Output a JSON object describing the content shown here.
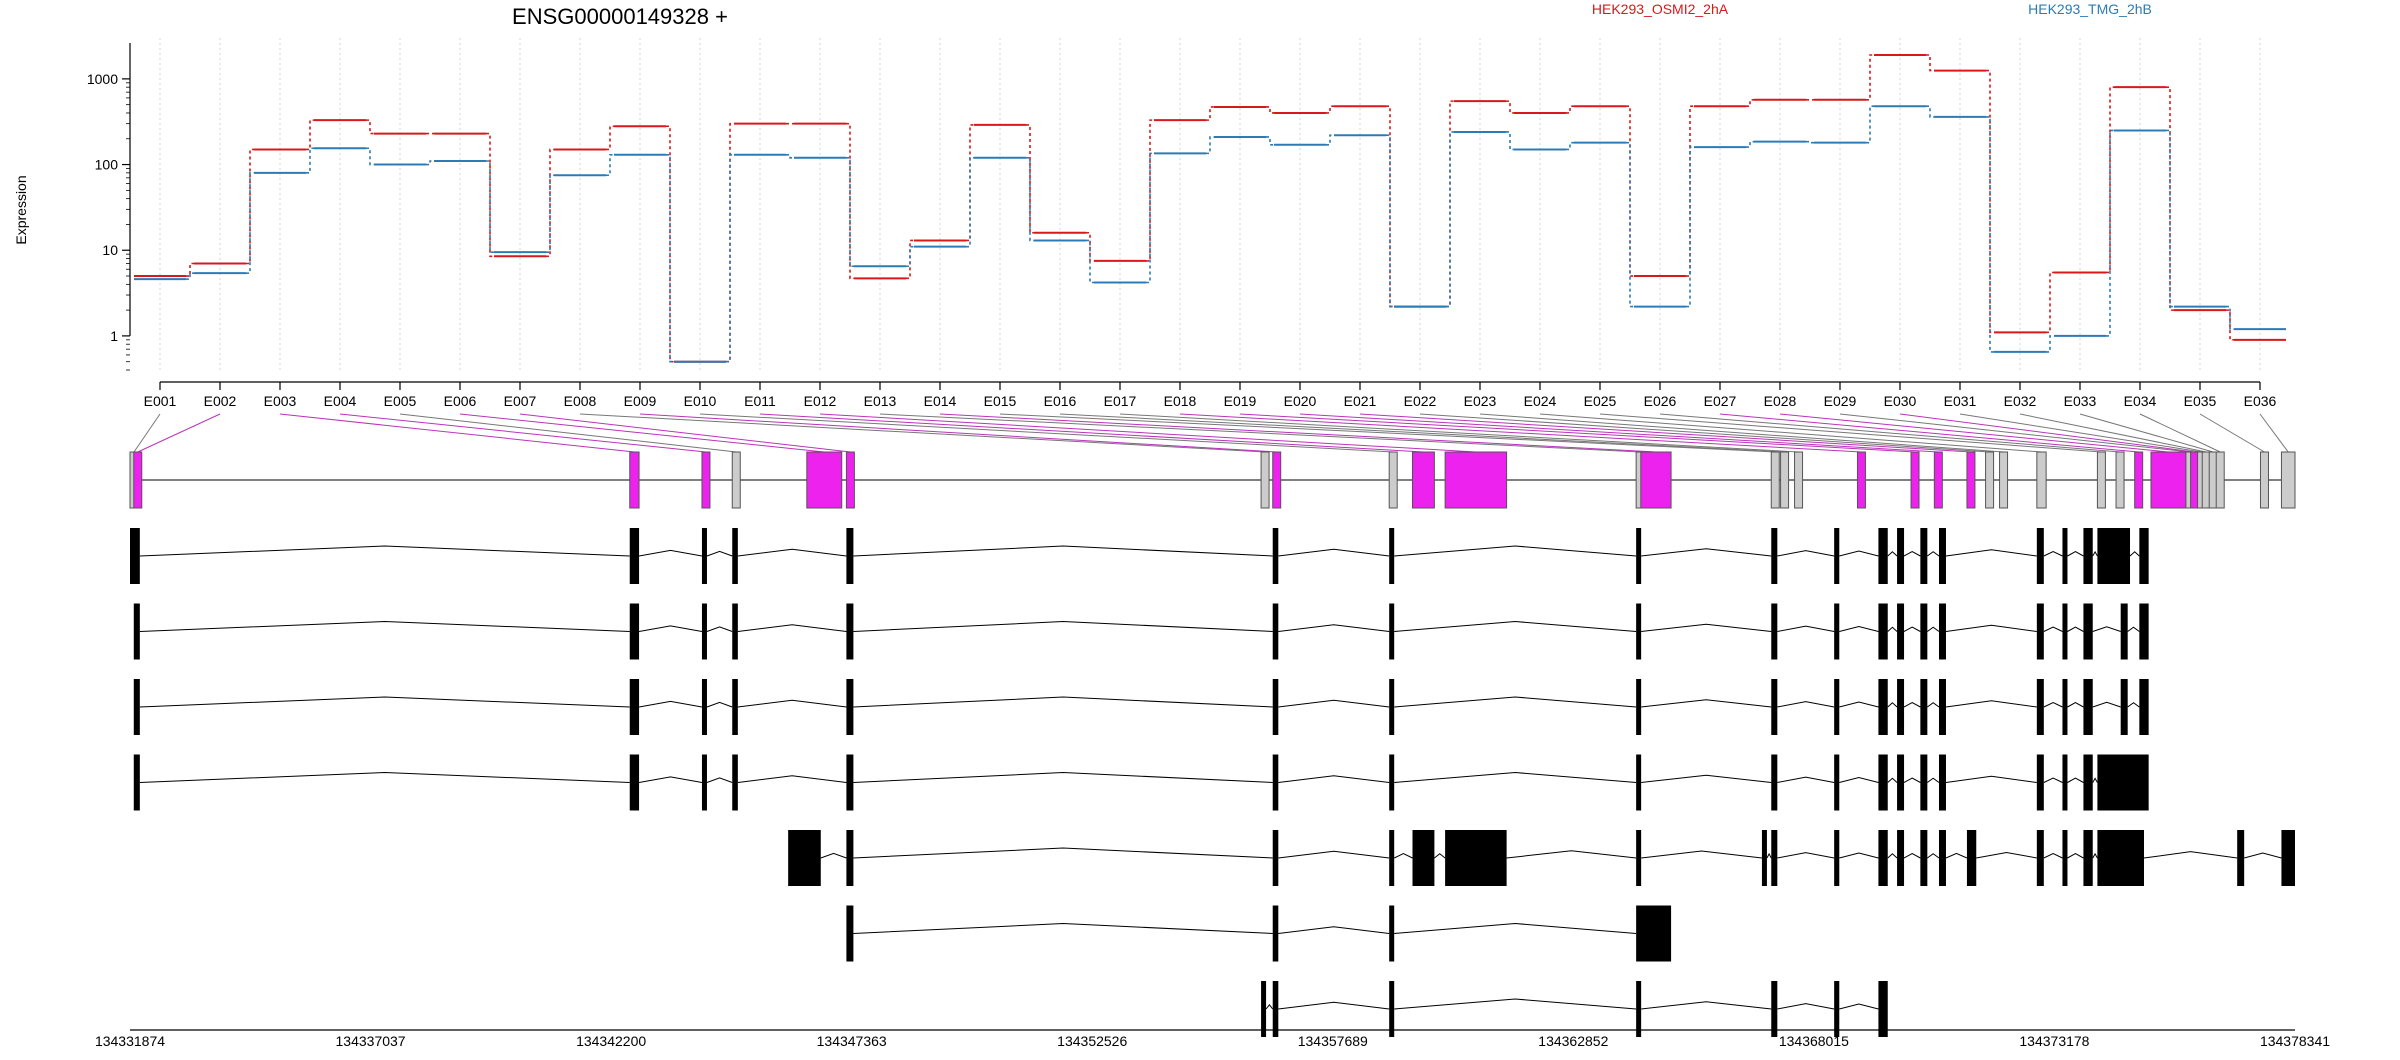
{
  "chart_data": {
    "type": "line",
    "title": "ENSG00000149328 +",
    "ylabel": "Expression",
    "xlabel": "",
    "y_scale": "log",
    "ylim": [
      0.4,
      3000
    ],
    "y_ticks": [
      1,
      10,
      100,
      1000
    ],
    "grid": "vertical dotted lines at exon bins",
    "legend_position": "top-right",
    "categories": [
      "E001",
      "E002",
      "E003",
      "E004",
      "E005",
      "E006",
      "E007",
      "E008",
      "E009",
      "E010",
      "E011",
      "E012",
      "E013",
      "E014",
      "E015",
      "E016",
      "E017",
      "E018",
      "E019",
      "E020",
      "E021",
      "E022",
      "E023",
      "E024",
      "E025",
      "E026",
      "E027",
      "E028",
      "E029",
      "E030",
      "E031",
      "E032",
      "E033",
      "E034",
      "E035",
      "E036"
    ],
    "series": [
      {
        "name": "HEK293_OSMI2_2hA",
        "color": "#d7191c",
        "values": [
          5,
          7,
          150,
          330,
          230,
          230,
          8.5,
          150,
          280,
          0.5,
          300,
          300,
          4.7,
          13,
          290,
          16,
          7.5,
          330,
          470,
          400,
          480,
          2.2,
          550,
          400,
          480,
          5,
          480,
          570,
          570,
          1900,
          1250,
          1.1,
          5.5,
          800,
          2,
          0.9
        ]
      },
      {
        "name": "HEK293_TMG_2hB",
        "color": "#2c7bb6",
        "values": [
          4.6,
          5.4,
          80,
          155,
          100,
          110,
          9.5,
          75,
          130,
          0.5,
          130,
          120,
          6.5,
          11,
          120,
          13,
          4.2,
          135,
          210,
          170,
          220,
          2.2,
          240,
          150,
          180,
          2.2,
          160,
          185,
          180,
          480,
          360,
          0.65,
          1,
          250,
          2.2,
          1.2
        ]
      }
    ],
    "genome_axis": {
      "ticks": [
        "134331874",
        "134337037",
        "134342200",
        "134347363",
        "134352526",
        "134357689",
        "134362852",
        "134368015",
        "134373178",
        "134378341"
      ],
      "start": 134331874,
      "end": 134378341
    },
    "exon_bins": [
      {
        "id": "E001",
        "start": 134331874,
        "end": 134331955,
        "diff": false
      },
      {
        "id": "E002",
        "start": 134331955,
        "end": 134332085,
        "diff": true
      },
      {
        "id": "E003",
        "start": 134342600,
        "end": 134342800,
        "diff": true
      },
      {
        "id": "E004",
        "start": 134344150,
        "end": 134344250,
        "diff": true
      },
      {
        "id": "E005",
        "start": 134344800,
        "end": 134344920,
        "diff": false
      },
      {
        "id": "E006",
        "start": 134346400,
        "end": 134347150,
        "diff": true
      },
      {
        "id": "E007",
        "start": 134347250,
        "end": 134347400,
        "diff": true
      },
      {
        "id": "E008",
        "start": 134356150,
        "end": 134356210,
        "diff": false
      },
      {
        "id": "E009",
        "start": 134356400,
        "end": 134356520,
        "diff": true
      },
      {
        "id": "E010",
        "start": 134358900,
        "end": 134359000,
        "diff": false
      },
      {
        "id": "E011",
        "start": 134359400,
        "end": 134359870,
        "diff": true
      },
      {
        "id": "E012",
        "start": 134360100,
        "end": 134361420,
        "diff": true
      },
      {
        "id": "E013",
        "start": 134364200,
        "end": 134364300,
        "diff": false
      },
      {
        "id": "E014",
        "start": 134364300,
        "end": 134364950,
        "diff": true
      },
      {
        "id": "E015",
        "start": 134367100,
        "end": 134367230,
        "diff": false
      },
      {
        "id": "E016",
        "start": 134367300,
        "end": 134367400,
        "diff": false
      },
      {
        "id": "E017",
        "start": 134367600,
        "end": 134367750,
        "diff": false
      },
      {
        "id": "E018",
        "start": 134368950,
        "end": 134369100,
        "diff": true
      },
      {
        "id": "E019",
        "start": 134370100,
        "end": 134370200,
        "diff": true
      },
      {
        "id": "E020",
        "start": 134370600,
        "end": 134370750,
        "diff": true
      },
      {
        "id": "E021",
        "start": 134371300,
        "end": 134371450,
        "diff": true
      },
      {
        "id": "E022",
        "start": 134371700,
        "end": 134371850,
        "diff": false
      },
      {
        "id": "E023",
        "start": 134372000,
        "end": 134372120,
        "diff": false
      },
      {
        "id": "E024",
        "start": 134372800,
        "end": 134373000,
        "diff": false
      },
      {
        "id": "E025",
        "start": 134374100,
        "end": 134374200,
        "diff": false
      },
      {
        "id": "E026",
        "start": 134374500,
        "end": 134374650,
        "diff": false
      },
      {
        "id": "E027",
        "start": 134374900,
        "end": 134375050,
        "diff": true
      },
      {
        "id": "E028",
        "start": 134375250,
        "end": 134376000,
        "diff": true
      },
      {
        "id": "E029",
        "start": 134376000,
        "end": 134376100,
        "diff": false
      },
      {
        "id": "E030",
        "start": 134376100,
        "end": 134376250,
        "diff": true
      },
      {
        "id": "E031",
        "start": 134376250,
        "end": 134376350,
        "diff": false
      },
      {
        "id": "E032",
        "start": 134376350,
        "end": 134376500,
        "diff": false
      },
      {
        "id": "E033",
        "start": 134376500,
        "end": 134376650,
        "diff": false
      },
      {
        "id": "E034",
        "start": 134376650,
        "end": 134376750,
        "diff": false
      },
      {
        "id": "E035",
        "start": 134377600,
        "end": 134377750,
        "diff": false
      },
      {
        "id": "E036",
        "start": 134378050,
        "end": 134378341,
        "diff": false
      }
    ],
    "transcripts": [
      [
        [
          134331874,
          134332085
        ],
        [
          134342600,
          134342800
        ],
        [
          134344150,
          134344250
        ],
        [
          134344800,
          134344920
        ],
        [
          134347250,
          134347400
        ],
        [
          134356400,
          134356520
        ],
        [
          134358900,
          134359000
        ],
        [
          134364200,
          134364300
        ],
        [
          134367100,
          134367230
        ],
        [
          134368450,
          134368560
        ],
        [
          134369400,
          134369600
        ],
        [
          134369800,
          134369950
        ],
        [
          134370300,
          134370450
        ],
        [
          134370700,
          134370850
        ],
        [
          134372800,
          134372950
        ],
        [
          134373350,
          134373450
        ],
        [
          134373800,
          134374000
        ],
        [
          134374100,
          134374800
        ],
        [
          134375000,
          134375200
        ]
      ],
      [
        [
          134331955,
          134332085
        ],
        [
          134342600,
          134342800
        ],
        [
          134344150,
          134344250
        ],
        [
          134344800,
          134344920
        ],
        [
          134347250,
          134347400
        ],
        [
          134356400,
          134356520
        ],
        [
          134358900,
          134359000
        ],
        [
          134364200,
          134364300
        ],
        [
          134367100,
          134367230
        ],
        [
          134368450,
          134368560
        ],
        [
          134369400,
          134369600
        ],
        [
          134369800,
          134369950
        ],
        [
          134370300,
          134370450
        ],
        [
          134370700,
          134370850
        ],
        [
          134372800,
          134372950
        ],
        [
          134373350,
          134373450
        ],
        [
          134373800,
          134374000
        ],
        [
          134374600,
          134374750
        ],
        [
          134375000,
          134375200
        ]
      ],
      [
        [
          134331955,
          134332085
        ],
        [
          134342600,
          134342800
        ],
        [
          134344150,
          134344250
        ],
        [
          134344800,
          134344920
        ],
        [
          134347250,
          134347400
        ],
        [
          134356400,
          134356520
        ],
        [
          134358900,
          134359000
        ],
        [
          134364200,
          134364300
        ],
        [
          134367100,
          134367230
        ],
        [
          134368450,
          134368560
        ],
        [
          134369400,
          134369600
        ],
        [
          134369800,
          134369950
        ],
        [
          134370300,
          134370450
        ],
        [
          134370700,
          134370850
        ],
        [
          134372800,
          134372950
        ],
        [
          134373350,
          134373450
        ],
        [
          134373800,
          134374000
        ],
        [
          134374600,
          134374750
        ],
        [
          134375000,
          134375200
        ]
      ],
      [
        [
          134331955,
          134332085
        ],
        [
          134342600,
          134342800
        ],
        [
          134344150,
          134344250
        ],
        [
          134344800,
          134344920
        ],
        [
          134347250,
          134347400
        ],
        [
          134356400,
          134356520
        ],
        [
          134358900,
          134359000
        ],
        [
          134364200,
          134364300
        ],
        [
          134367100,
          134367230
        ],
        [
          134368450,
          134368560
        ],
        [
          134369400,
          134369600
        ],
        [
          134369800,
          134369950
        ],
        [
          134370300,
          134370450
        ],
        [
          134370700,
          134370850
        ],
        [
          134372800,
          134372950
        ],
        [
          134373350,
          134373450
        ],
        [
          134373800,
          134374000
        ],
        [
          134374100,
          134375200
        ]
      ],
      [
        [
          134346000,
          134346700
        ],
        [
          134347250,
          134347400
        ],
        [
          134356400,
          134356520
        ],
        [
          134358900,
          134359000
        ],
        [
          134359400,
          134359870
        ],
        [
          134360100,
          134361420
        ],
        [
          134364200,
          134364300
        ],
        [
          134366900,
          134367000
        ],
        [
          134367100,
          134367230
        ],
        [
          134368450,
          134368560
        ],
        [
          134369400,
          134369600
        ],
        [
          134369800,
          134369950
        ],
        [
          134370300,
          134370450
        ],
        [
          134370700,
          134370850
        ],
        [
          134371300,
          134371500
        ],
        [
          134372800,
          134372950
        ],
        [
          134373350,
          134373450
        ],
        [
          134373800,
          134374000
        ],
        [
          134374100,
          134375100
        ],
        [
          134377100,
          134377250
        ],
        [
          134378050,
          134378341
        ]
      ],
      [
        [
          134347250,
          134347400
        ],
        [
          134356400,
          134356520
        ],
        [
          134358900,
          134359000
        ],
        [
          134364200,
          134364950
        ]
      ],
      [
        [
          134356150,
          134356210
        ],
        [
          134356400,
          134356520
        ],
        [
          134358900,
          134359000
        ],
        [
          134364200,
          134364300
        ],
        [
          134367100,
          134367230
        ],
        [
          134368450,
          134368560
        ],
        [
          134369400,
          134369600
        ]
      ]
    ]
  }
}
